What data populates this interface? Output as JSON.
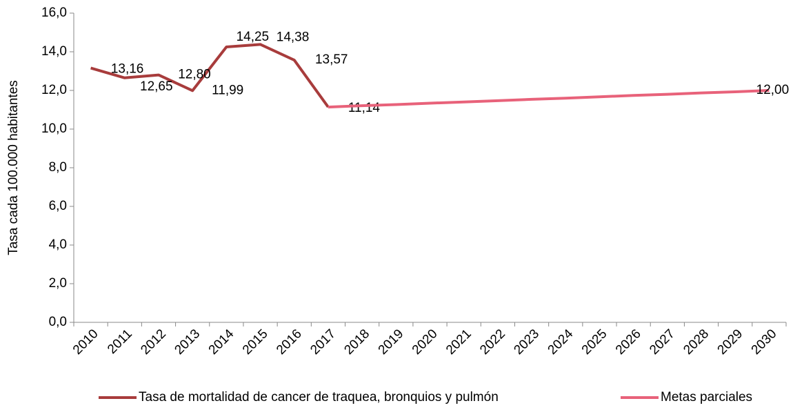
{
  "chart_data": {
    "type": "line",
    "y_label": "Tasa cada 100.000 habitantes",
    "categories": [
      "2010",
      "2011",
      "2012",
      "2013",
      "2014",
      "2015",
      "2016",
      "2017",
      "2018",
      "2019",
      "2020",
      "2021",
      "2022",
      "2023",
      "2024",
      "2025",
      "2026",
      "2027",
      "2028",
      "2029",
      "2030"
    ],
    "series": [
      {
        "name": "Tasa de mortalidad de cancer de traquea, bronquios y pulmón",
        "color": "#a83c3c",
        "values": [
          13.16,
          12.65,
          12.8,
          11.99,
          14.25,
          14.38,
          13.57,
          11.14,
          null,
          null,
          null,
          null,
          null,
          null,
          null,
          null,
          null,
          null,
          null,
          null,
          null
        ],
        "value_labels": [
          "13,16",
          "12,65",
          "12,80",
          "11,99",
          "14,25",
          "14,38",
          "13,57",
          "11,14",
          null,
          null,
          null,
          null,
          null,
          null,
          null,
          null,
          null,
          null,
          null,
          null,
          null
        ]
      },
      {
        "name": "Metas parciales",
        "color": "#e8627a",
        "values": [
          null,
          null,
          null,
          null,
          null,
          null,
          null,
          11.14,
          11.21,
          11.27,
          11.34,
          11.4,
          11.47,
          11.54,
          11.6,
          11.67,
          11.74,
          11.8,
          11.87,
          11.93,
          12.0
        ],
        "value_labels": [
          null,
          null,
          null,
          null,
          null,
          null,
          null,
          null,
          null,
          null,
          null,
          null,
          null,
          null,
          null,
          null,
          null,
          null,
          null,
          null,
          "12,00"
        ]
      }
    ],
    "ylim": [
      0,
      16
    ],
    "yticks": [
      {
        "value": 0,
        "label": "0,0"
      },
      {
        "value": 2,
        "label": "2,0"
      },
      {
        "value": 4,
        "label": "4,0"
      },
      {
        "value": 6,
        "label": "6,0"
      },
      {
        "value": 8,
        "label": "8,0"
      },
      {
        "value": 10,
        "label": "10,0"
      },
      {
        "value": 12,
        "label": "12,0"
      },
      {
        "value": 14,
        "label": "14,0"
      },
      {
        "value": 16,
        "label": "16,0"
      }
    ],
    "grid": false,
    "legend": "bottom"
  }
}
